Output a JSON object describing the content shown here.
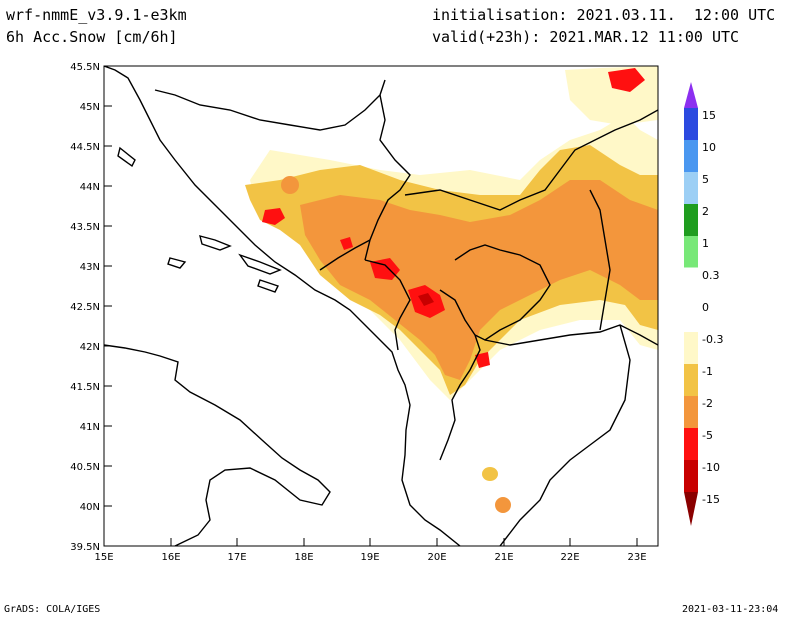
{
  "header": {
    "model": "wrf-nmmE_v3.9.1-e3km",
    "variable": "6h Acc.Snow [cm/6h]",
    "initialisation": "initialisation: 2021.03.11.  12:00 UTC",
    "valid": "valid(+23h): 2021.MAR.12 11:00 UTC"
  },
  "footer": {
    "left": "GrADS: COLA/IGES",
    "right": "2021-03-11-23:04"
  },
  "map": {
    "lat_labels": [
      "45.5N",
      "45N",
      "44.5N",
      "44N",
      "43.5N",
      "43N",
      "42.5N",
      "42N",
      "41.5N",
      "41N",
      "40.5N",
      "40N",
      "39.5N"
    ],
    "lon_labels": [
      "15E",
      "16E",
      "17E",
      "18E",
      "19E",
      "20E",
      "21E",
      "22E",
      "23E"
    ]
  },
  "legend": {
    "labels": [
      "15",
      "10",
      "5",
      "2",
      "1",
      "0.3",
      "0",
      "-0.3",
      "-1",
      "-2",
      "-5",
      "-10",
      "-15"
    ],
    "colors": {
      "c15": "#8c2ff0",
      "c10": "#2b4ae0",
      "c5": "#4a97f0",
      "c2": "#9ccff5",
      "c1": "#1f9d1f",
      "c03": "#78e878",
      "zero": "#ffffff",
      "m03": "#fff8c8",
      "m1": "#f2c345",
      "m2": "#f3963c",
      "m5": "#ff1010",
      "m10": "#c80000",
      "m15": "#8a0000"
    }
  }
}
